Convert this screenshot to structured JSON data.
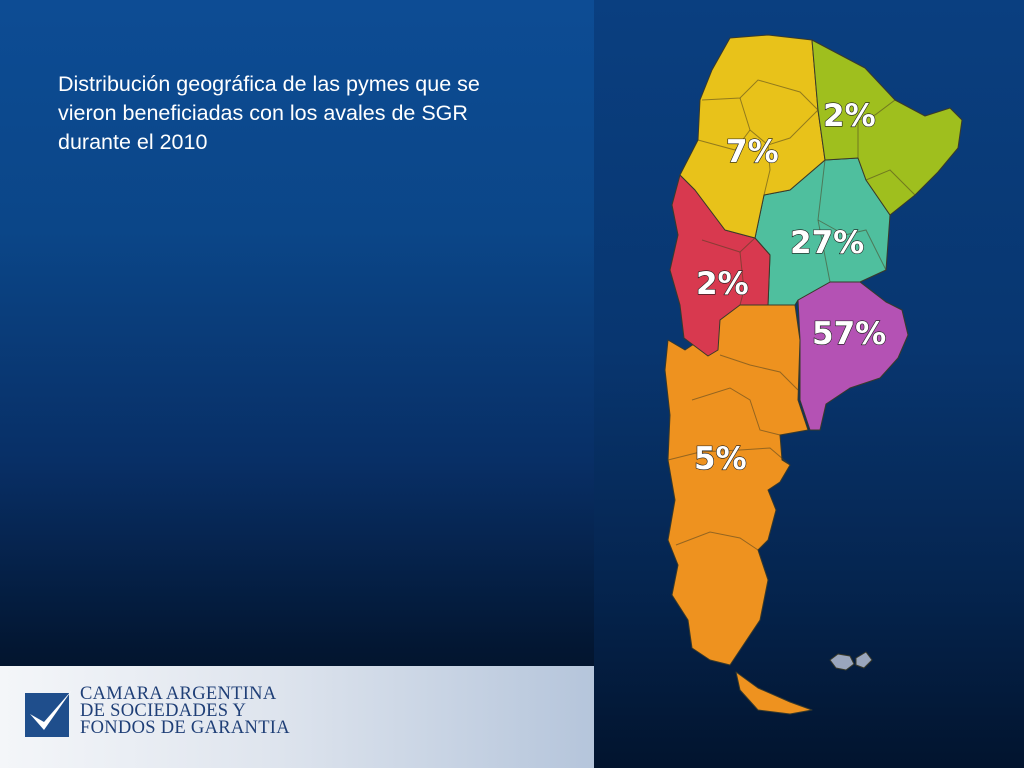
{
  "slide": {
    "title": "Distribución geográfica de las pymes que se vieron beneficiadas con los avales de SGR durante el 2010"
  },
  "map": {
    "regions": [
      {
        "name": "noa",
        "color": "#e8c21a",
        "percent": "7%"
      },
      {
        "name": "nea",
        "color": "#9fbf1e",
        "percent": "2%"
      },
      {
        "name": "centro",
        "color": "#4fbf9e",
        "percent": "27%"
      },
      {
        "name": "cuyo",
        "color": "#d8394f",
        "percent": "2%"
      },
      {
        "name": "buenos-aires",
        "color": "#b452b4",
        "percent": "57%"
      },
      {
        "name": "patagonia",
        "color": "#ee921f",
        "percent": "5%"
      }
    ]
  },
  "footer": {
    "logo_line1": "CAMARA ARGENTINA",
    "logo_line2": "DE SOCIEDADES Y",
    "logo_line3": "FONDOS DE GARANTIA",
    "logo_color": "#1f3f77"
  }
}
